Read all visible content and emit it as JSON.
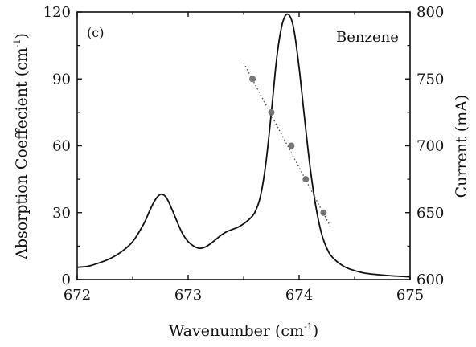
{
  "chart_data": {
    "type": "line",
    "panel_label": "(c)",
    "annotation": "Benzene",
    "xlabel": {
      "text": "Wavenumber (cm",
      "sup": "-1",
      "suffix": ")"
    },
    "ylabel_left": {
      "text": "Absorption Coeffecient (cm",
      "sup": "-1",
      "suffix": ")"
    },
    "ylabel_right": "Current (mA)",
    "xlim": [
      672,
      675
    ],
    "ylim_left": [
      0,
      120
    ],
    "ylim_right": [
      600,
      800
    ],
    "x_ticks": [
      "672",
      "673",
      "674",
      "675"
    ],
    "y_ticks_left": [
      "0",
      "30",
      "60",
      "90",
      "120"
    ],
    "y_ticks_right": [
      "600",
      "650",
      "700",
      "750",
      "800"
    ],
    "grid": false,
    "series": [
      {
        "axis": "left",
        "style": "solid",
        "x": [
          672.0,
          672.1,
          672.2,
          672.3,
          672.4,
          672.5,
          672.6,
          672.65,
          672.7,
          672.75,
          672.8,
          672.85,
          672.9,
          672.95,
          673.0,
          673.05,
          673.1,
          673.15,
          673.2,
          673.25,
          673.3,
          673.35,
          673.4,
          673.45,
          673.5,
          673.55,
          673.6,
          673.65,
          673.7,
          673.75,
          673.8,
          673.85,
          673.9,
          673.95,
          674.0,
          674.05,
          674.1,
          674.15,
          674.2,
          674.25,
          674.3,
          674.4,
          674.5,
          674.6,
          674.8,
          675.0
        ],
        "y": [
          5.5,
          6.0,
          7.5,
          9.5,
          12.5,
          17.0,
          25.0,
          30.5,
          35.5,
          38.2,
          37.0,
          32.0,
          26.0,
          20.5,
          17.0,
          15.0,
          14.0,
          14.5,
          16.0,
          18.0,
          20.0,
          21.5,
          22.5,
          23.5,
          25.0,
          27.0,
          30.0,
          37.0,
          52.0,
          75.0,
          100.0,
          115.0,
          119.0,
          113.0,
          95.0,
          72.0,
          50.0,
          33.0,
          21.0,
          14.0,
          10.0,
          6.0,
          4.0,
          2.8,
          1.8,
          1.2
        ]
      },
      {
        "axis": "right",
        "style": "markers",
        "x": [
          673.58,
          673.75,
          673.93,
          674.06,
          674.22
        ],
        "y": [
          750,
          725,
          700,
          675,
          650
        ]
      },
      {
        "axis": "right",
        "style": "dotted-fit",
        "x": [
          673.5,
          674.28
        ],
        "y": [
          762,
          640
        ]
      }
    ]
  }
}
